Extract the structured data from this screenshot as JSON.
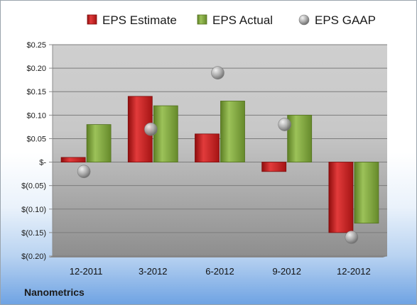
{
  "company": "Nanometrics",
  "chart_data": {
    "type": "bar",
    "categories": [
      "12-2011",
      "3-2012",
      "6-2012",
      "9-2012",
      "12-2012"
    ],
    "series": [
      {
        "name": "EPS Estimate",
        "type": "bar",
        "values": [
          0.01,
          0.14,
          0.06,
          -0.02,
          -0.15
        ],
        "color": "#cc1f1f"
      },
      {
        "name": "EPS Actual",
        "type": "bar",
        "values": [
          0.08,
          0.12,
          0.13,
          0.1,
          -0.13
        ],
        "color": "#7fa63a"
      },
      {
        "name": "EPS GAAP",
        "type": "scatter",
        "values": [
          -0.02,
          0.07,
          0.19,
          0.08,
          -0.16
        ],
        "color": "#a8a8a8"
      }
    ],
    "ylim": [
      -0.2,
      0.25
    ],
    "yticks": [
      0.25,
      0.2,
      0.15,
      0.1,
      0.05,
      0.0,
      -0.05,
      -0.1,
      -0.15,
      -0.2
    ],
    "ytick_labels": [
      "$0.25",
      "$0.20",
      "$0.15",
      "$0.10",
      "$0.05",
      "$-",
      "$(0.05)",
      "$(0.10)",
      "$(0.15)",
      "$(0.20)"
    ],
    "grid": true,
    "legend": "top"
  }
}
